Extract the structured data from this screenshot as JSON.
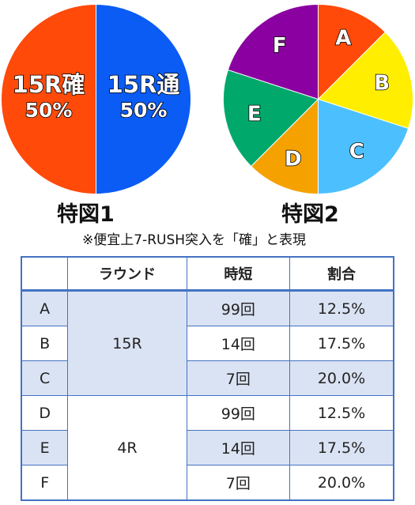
{
  "chart_data": [
    {
      "type": "pie",
      "title": "特図1",
      "slices": [
        {
          "label": "15R通",
          "value": 50,
          "display": "50%",
          "color": "#0a5cf5"
        },
        {
          "label": "15R確",
          "value": 50,
          "display": "50%",
          "color": "#ff4a0a"
        }
      ]
    },
    {
      "type": "pie",
      "title": "特図2",
      "slices": [
        {
          "label": "A",
          "value": 12.5,
          "color": "#ff4a0a"
        },
        {
          "label": "B",
          "value": 17.5,
          "color": "#ffee00"
        },
        {
          "label": "C",
          "value": 20.0,
          "color": "#4cc0ff"
        },
        {
          "label": "D",
          "value": 12.5,
          "color": "#f5a200"
        },
        {
          "label": "E",
          "value": 17.5,
          "color": "#00a86b"
        },
        {
          "label": "F",
          "value": 20.0,
          "color": "#8b00a0"
        }
      ]
    }
  ],
  "captions": {
    "pie1": "特図1",
    "pie2": "特図2"
  },
  "note": "※便宜上7-RUSH突入を「確」と表現",
  "table": {
    "headers": [
      "",
      "ラウンド",
      "時短",
      "割合"
    ],
    "rounds": [
      "15R",
      "4R"
    ],
    "rows": [
      {
        "id": "A",
        "jitan": "99回",
        "ratio": "12.5%"
      },
      {
        "id": "B",
        "jitan": "14回",
        "ratio": "17.5%"
      },
      {
        "id": "C",
        "jitan": "7回",
        "ratio": "20.0%"
      },
      {
        "id": "D",
        "jitan": "99回",
        "ratio": "12.5%"
      },
      {
        "id": "E",
        "jitan": "14回",
        "ratio": "17.5%"
      },
      {
        "id": "F",
        "jitan": "7回",
        "ratio": "20.0%"
      }
    ]
  }
}
